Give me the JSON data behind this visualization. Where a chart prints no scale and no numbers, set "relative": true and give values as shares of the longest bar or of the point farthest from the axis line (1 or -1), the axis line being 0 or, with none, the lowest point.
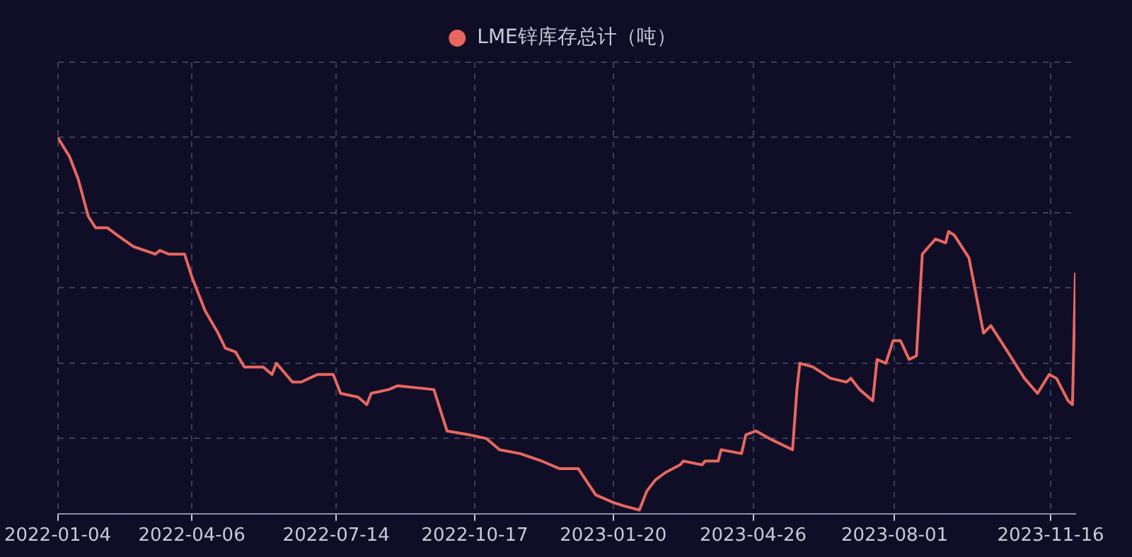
{
  "chart_data": {
    "type": "line",
    "relative": true,
    "grid": true,
    "legend": "top",
    "line_style": "solid",
    "xlim": [
      "2022-01-04",
      "2023-12-03"
    ],
    "xticks": [
      "2022-01-04",
      "2022-04-06",
      "2022-07-14",
      "2022-10-17",
      "2023-01-20",
      "2023-04-26",
      "2023-08-01",
      "2023-11-16"
    ],
    "series": [
      {
        "name": "LME锌库存总计（吨）",
        "color": "#e8675f",
        "x": [
          "2022-01-04",
          "2022-01-12",
          "2022-01-18",
          "2022-01-25",
          "2022-01-30",
          "2022-02-07",
          "2022-02-14",
          "2022-02-25",
          "2022-03-12",
          "2022-03-15",
          "2022-03-21",
          "2022-04-01",
          "2022-04-06",
          "2022-04-15",
          "2022-04-24",
          "2022-04-29",
          "2022-05-06",
          "2022-05-12",
          "2022-05-25",
          "2022-05-31",
          "2022-06-03",
          "2022-06-14",
          "2022-06-20",
          "2022-07-01",
          "2022-07-12",
          "2022-07-17",
          "2022-07-29",
          "2022-08-04",
          "2022-08-07",
          "2022-08-19",
          "2022-08-25",
          "2022-09-19",
          "2022-09-28",
          "2022-10-13",
          "2022-10-25",
          "2022-11-03",
          "2022-11-17",
          "2022-12-02",
          "2022-12-14",
          "2022-12-27",
          "2023-01-08",
          "2023-01-20",
          "2023-01-28",
          "2023-02-07",
          "2023-02-12",
          "2023-02-18",
          "2023-02-25",
          "2023-03-07",
          "2023-03-09",
          "2023-03-22",
          "2023-03-24",
          "2023-04-02",
          "2023-04-04",
          "2023-04-18",
          "2023-04-21",
          "2023-04-28",
          "2023-05-07",
          "2023-05-23",
          "2023-05-26",
          "2023-05-28",
          "2023-06-06",
          "2023-06-18",
          "2023-06-29",
          "2023-07-02",
          "2023-07-08",
          "2023-07-17",
          "2023-07-20",
          "2023-07-26",
          "2023-07-31",
          "2023-08-05",
          "2023-08-11",
          "2023-08-16",
          "2023-08-20",
          "2023-08-29",
          "2023-09-05",
          "2023-09-07",
          "2023-09-11",
          "2023-09-21",
          "2023-10-01",
          "2023-10-06",
          "2023-10-16",
          "2023-10-29",
          "2023-11-07",
          "2023-11-15",
          "2023-11-20",
          "2023-11-28",
          "2023-12-01",
          "2023-12-03"
        ],
        "values": [
          1.0,
          0.95,
          0.89,
          0.79,
          0.76,
          0.76,
          0.74,
          0.71,
          0.69,
          0.7,
          0.69,
          0.69,
          0.63,
          0.54,
          0.48,
          0.44,
          0.43,
          0.39,
          0.39,
          0.37,
          0.4,
          0.35,
          0.35,
          0.37,
          0.37,
          0.32,
          0.31,
          0.29,
          0.32,
          0.33,
          0.34,
          0.33,
          0.22,
          0.21,
          0.2,
          0.17,
          0.16,
          0.14,
          0.12,
          0.12,
          0.05,
          0.03,
          0.02,
          0.01,
          0.06,
          0.09,
          0.11,
          0.13,
          0.14,
          0.13,
          0.14,
          0.14,
          0.17,
          0.16,
          0.21,
          0.22,
          0.2,
          0.17,
          0.33,
          0.4,
          0.39,
          0.36,
          0.35,
          0.36,
          0.33,
          0.3,
          0.41,
          0.4,
          0.46,
          0.46,
          0.41,
          0.42,
          0.69,
          0.73,
          0.72,
          0.75,
          0.74,
          0.68,
          0.48,
          0.5,
          0.44,
          0.36,
          0.32,
          0.37,
          0.36,
          0.3,
          0.29,
          0.64
        ]
      }
    ]
  }
}
